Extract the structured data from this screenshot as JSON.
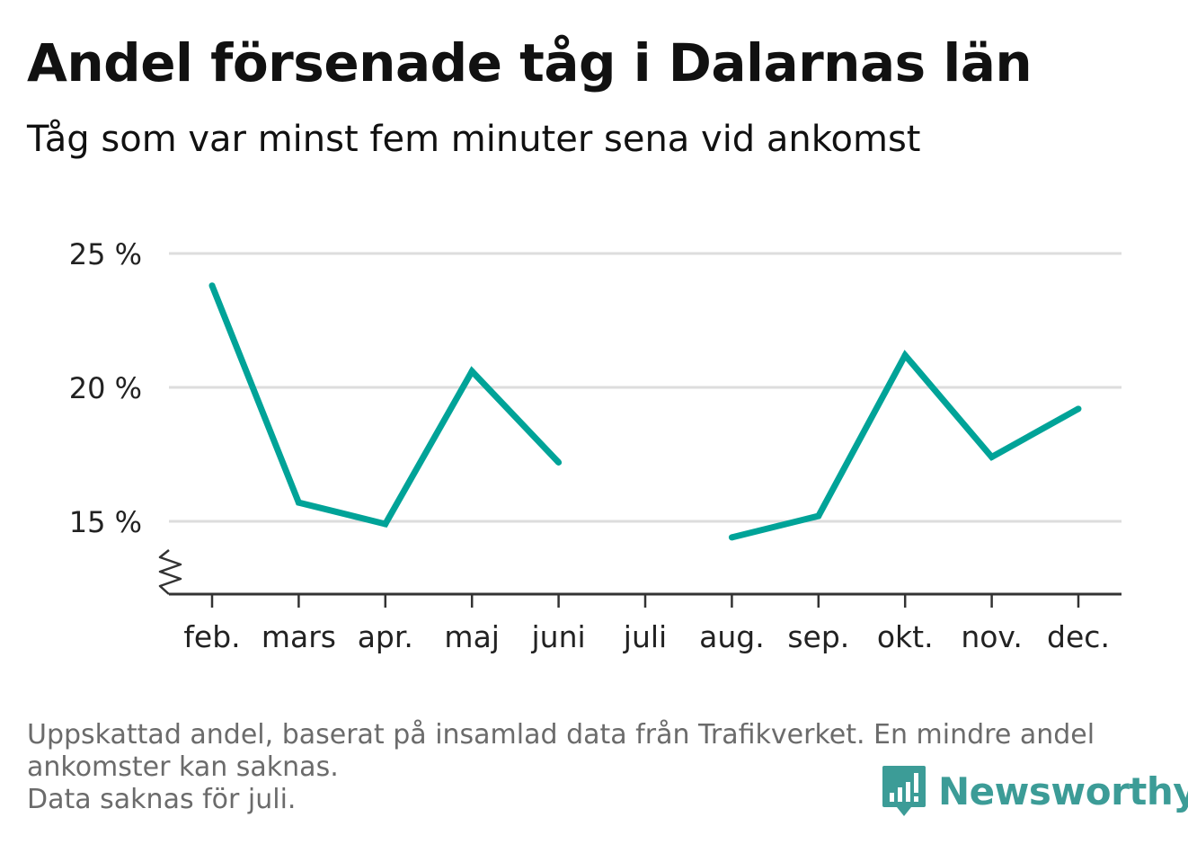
{
  "title": "Andel försenade tåg i Dalarnas län",
  "subtitle": "Tåg som var minst fem minuter sena vid ankomst",
  "chart_data": {
    "type": "line",
    "categories": [
      "feb.",
      "mars",
      "apr.",
      "maj",
      "juni",
      "juli",
      "aug.",
      "sep.",
      "okt.",
      "nov.",
      "dec."
    ],
    "series": [
      {
        "values": [
          23.8,
          15.7,
          14.9,
          20.6,
          17.2,
          null,
          14.4,
          15.2,
          21.2,
          17.4,
          19.2
        ]
      }
    ],
    "yticks": [
      15,
      20,
      25
    ],
    "ytick_labels": [
      "15 %",
      "20 %",
      "25 %"
    ],
    "ylim": [
      12.5,
      25
    ],
    "y_axis_break": true,
    "grid": true,
    "line_color": "#00a398"
  },
  "footnote": {
    "line1": "Uppskattad andel, baserat på insamlad data från Trafikverket. En mindre andel",
    "line2": "ankomster kan saknas.",
    "line3": "Data saknas för juli."
  },
  "logo": {
    "text": "Newsworthy",
    "color": "#3c9c97",
    "icon": "bar-chart-speech-icon"
  }
}
